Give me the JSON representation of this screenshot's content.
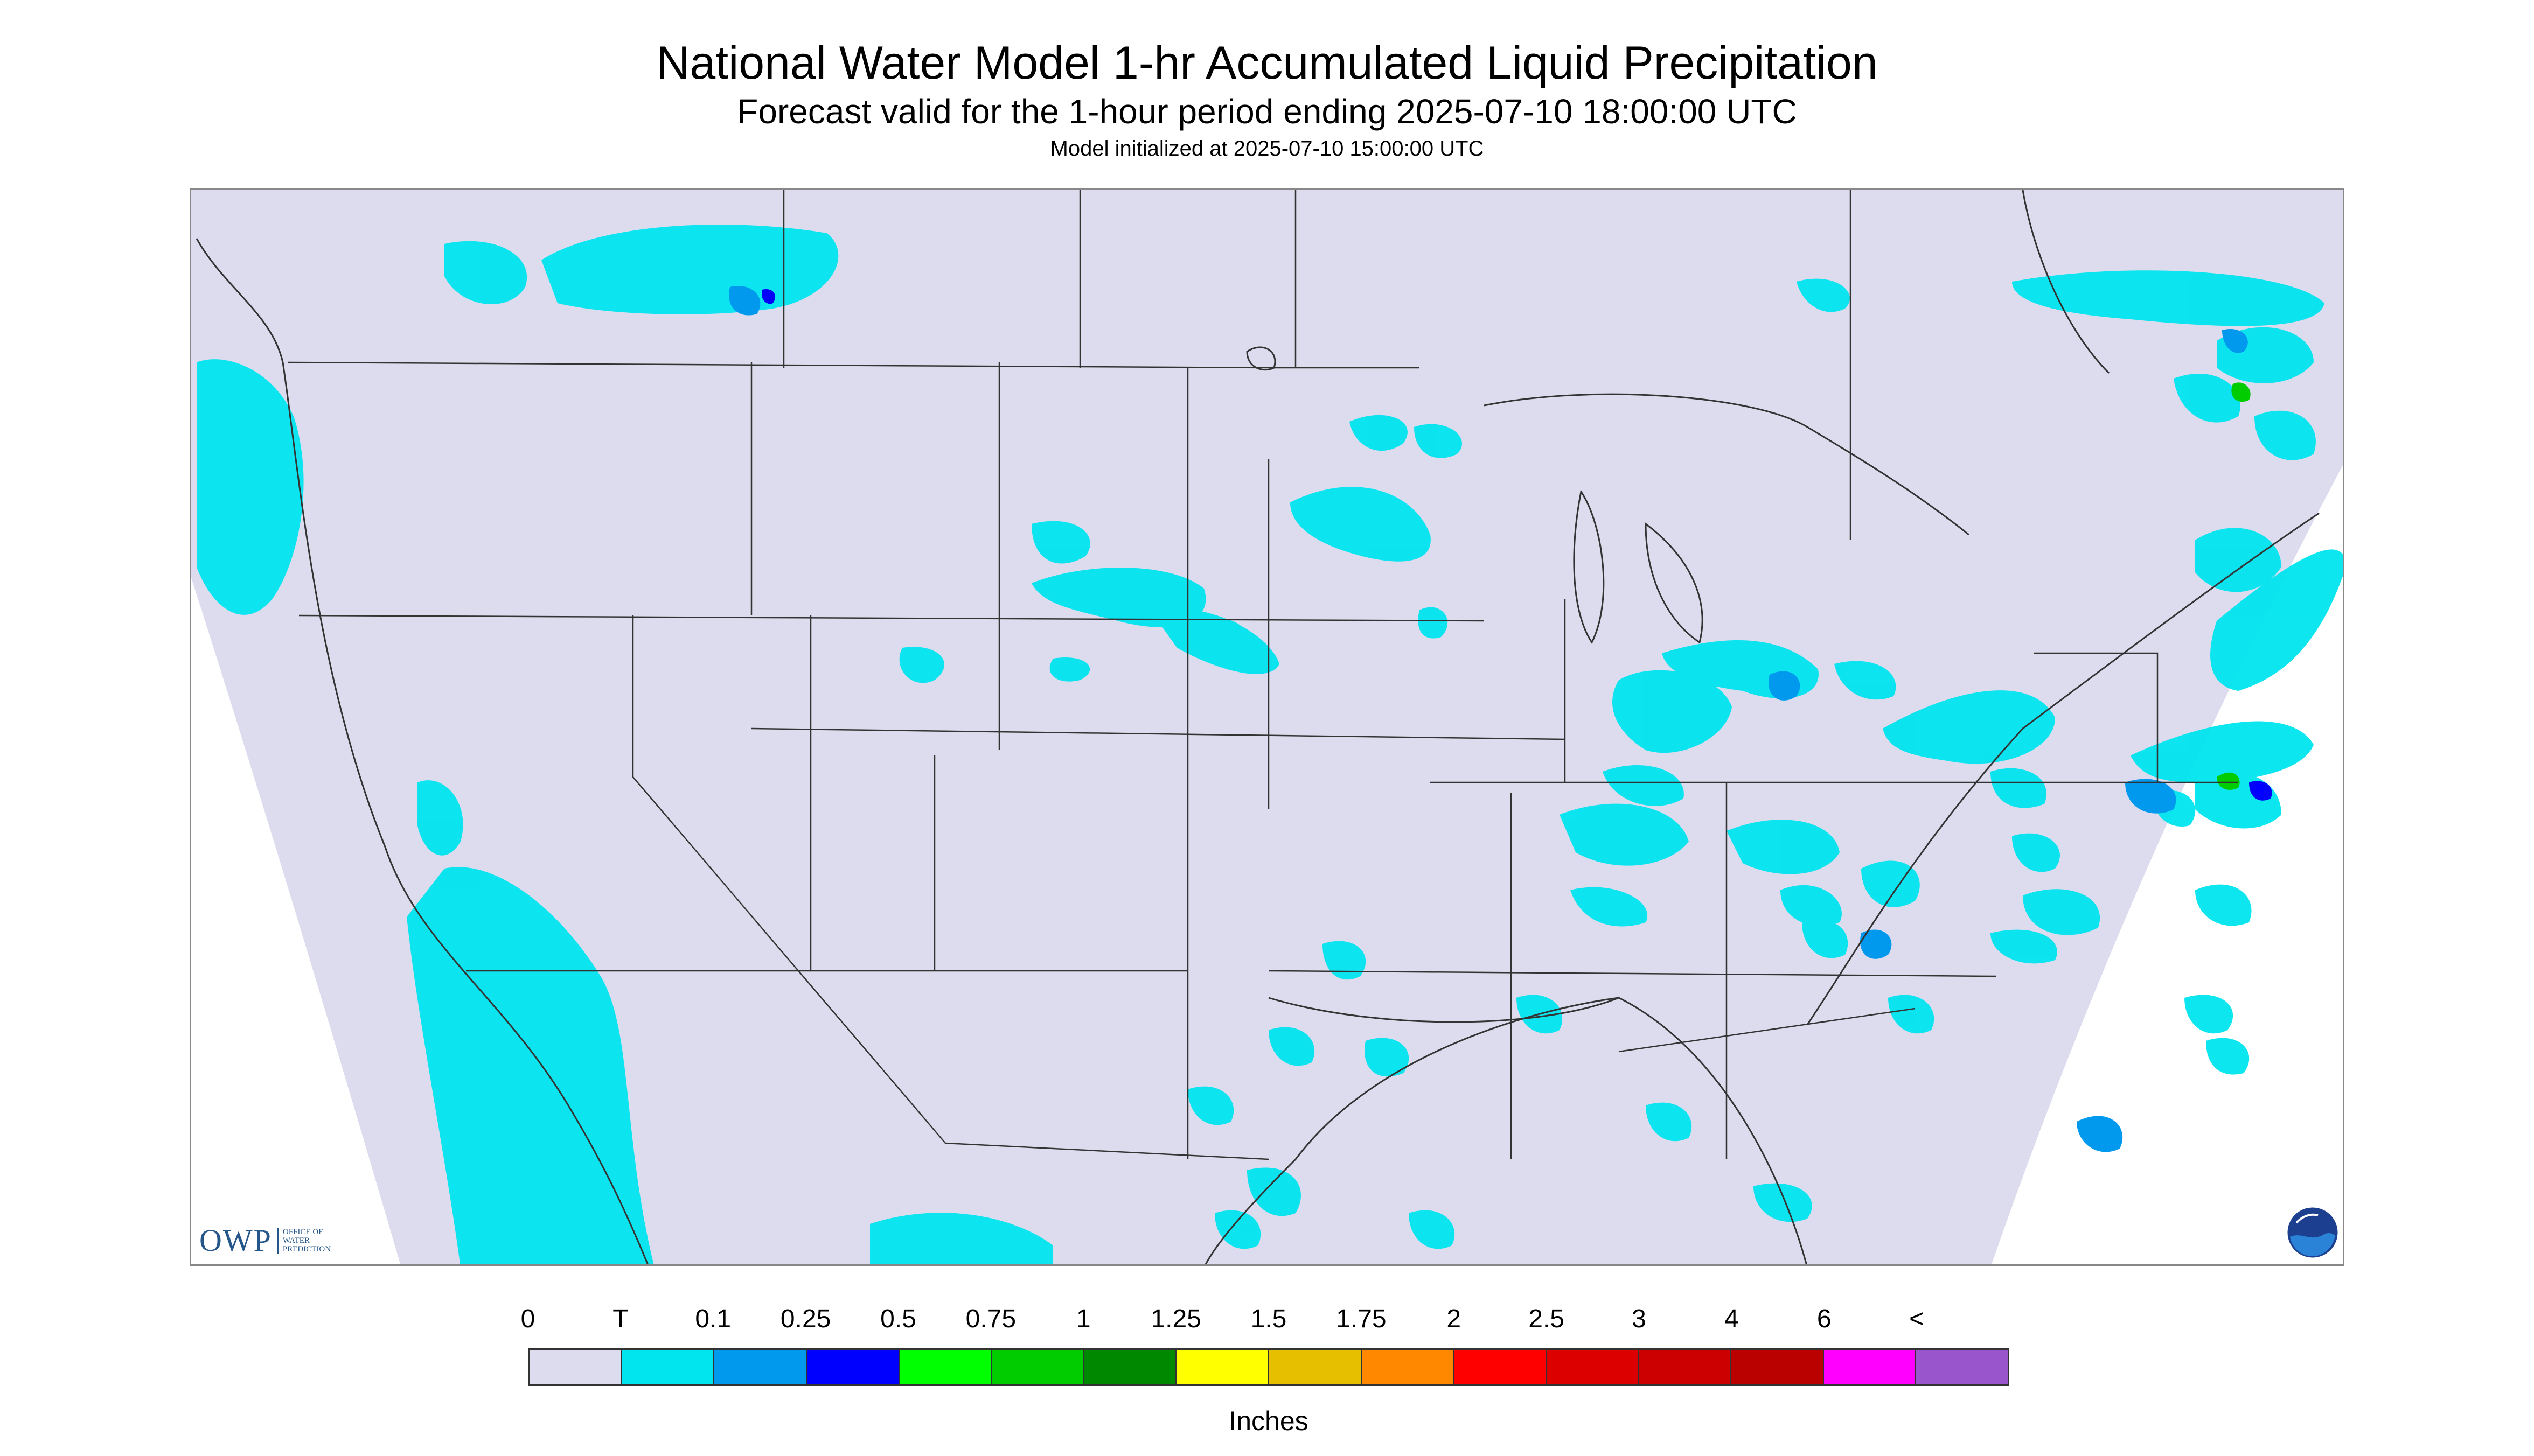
{
  "header": {
    "title": "National Water Model 1-hr Accumulated Liquid Precipitation",
    "subtitle": "Forecast valid for the 1-hour period ending 2025-07-10 18:00:00 UTC",
    "init": "Model initialized at 2025-07-10 15:00:00 UTC"
  },
  "map": {
    "region": "Continental United States",
    "background_color": "#dcdcee",
    "outside_color": "#ffffff",
    "boundary_color": "#333333",
    "precip_light_color": "#00e5ee",
    "precip_mid_color": "#0099ee",
    "precip_heavy_color": "#0000ff",
    "precip_green_color": "#00cc00"
  },
  "logos": {
    "owp_mark": "OWP",
    "owp_text": "OFFICE OF WATER PREDICTION",
    "noaa_icon": "noaa-emblem-icon"
  },
  "legend": {
    "ticks": [
      "0",
      "T",
      "0.1",
      "0.25",
      "0.5",
      "0.75",
      "1",
      "1.25",
      "1.5",
      "1.75",
      "2",
      "2.5",
      "3",
      "4",
      "6",
      "<"
    ],
    "colors": [
      "#dcdcee",
      "#00e5ee",
      "#0099ee",
      "#0000ff",
      "#00ff00",
      "#00cc00",
      "#008800",
      "#ffff00",
      "#e6c000",
      "#ff8800",
      "#ff0000",
      "#dd0000",
      "#cc0000",
      "#bb0000",
      "#ff00ff",
      "#9955cc"
    ],
    "units": "Inches"
  }
}
